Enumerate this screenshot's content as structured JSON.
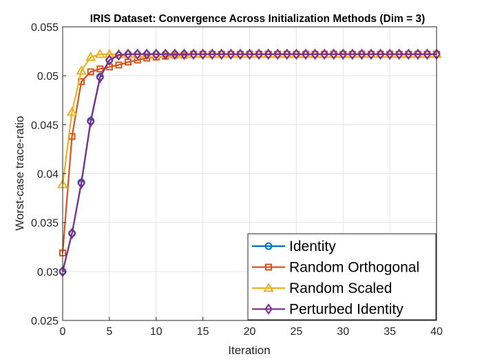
{
  "chart_data": {
    "type": "line",
    "title": "IRIS Dataset: Convergence Across Initialization Methods (Dim = 3)",
    "xlabel": "Iteration",
    "ylabel": "Worst-case trace-ratio",
    "xlim": [
      0,
      40
    ],
    "ylim": [
      0.025,
      0.055
    ],
    "xticks": [
      0,
      5,
      10,
      15,
      20,
      25,
      30,
      35,
      40
    ],
    "xtick_labels": [
      "0",
      "5",
      "10",
      "15",
      "20",
      "25",
      "30",
      "35",
      "40"
    ],
    "yticks": [
      0.025,
      0.03,
      0.035,
      0.04,
      0.045,
      0.05,
      0.055
    ],
    "ytick_labels": [
      "0.025",
      "0.03",
      "0.035",
      "0.04",
      "0.045",
      "0.05",
      "0.055"
    ],
    "grid": true,
    "legend_position": "bottom-right",
    "x": [
      0,
      1,
      2,
      3,
      4,
      5,
      6,
      7,
      8,
      9,
      10,
      11,
      12,
      13,
      14,
      15,
      16,
      17,
      18,
      19,
      20,
      21,
      22,
      23,
      24,
      25,
      26,
      27,
      28,
      29,
      30,
      31,
      32,
      33,
      34,
      35,
      36,
      37,
      38,
      39,
      40
    ],
    "series": [
      {
        "name": "Identity",
        "color": "#0072BD",
        "marker": "circle",
        "values": [
          0.03,
          0.0339,
          0.0391,
          0.0454,
          0.0499,
          0.0516,
          0.0521,
          0.0522,
          0.0522,
          0.0522,
          0.0522,
          0.0522,
          0.0522,
          0.0522,
          0.0522,
          0.0522,
          0.0522,
          0.0522,
          0.0522,
          0.0522,
          0.0522,
          0.0522,
          0.0522,
          0.0522,
          0.0522,
          0.0522,
          0.0522,
          0.0522,
          0.0522,
          0.0522,
          0.0522,
          0.0522,
          0.0522,
          0.0522,
          0.0522,
          0.0522,
          0.0522,
          0.0522,
          0.0522,
          0.0522,
          0.0522
        ]
      },
      {
        "name": "Random Orthogonal",
        "color": "#D95319",
        "marker": "square",
        "values": [
          0.0319,
          0.0438,
          0.0494,
          0.0504,
          0.0507,
          0.0509,
          0.0511,
          0.0514,
          0.0516,
          0.0518,
          0.0519,
          0.052,
          0.0521,
          0.0521,
          0.0522,
          0.0522,
          0.0522,
          0.0522,
          0.0522,
          0.0522,
          0.0522,
          0.0522,
          0.0522,
          0.0522,
          0.0522,
          0.0522,
          0.0522,
          0.0522,
          0.0522,
          0.0522,
          0.0522,
          0.0522,
          0.0522,
          0.0522,
          0.0522,
          0.0522,
          0.0522,
          0.0522,
          0.0522,
          0.0522,
          0.0522
        ]
      },
      {
        "name": "Random Scaled",
        "color": "#EDB120",
        "marker": "triangle",
        "values": [
          0.0389,
          0.0463,
          0.0505,
          0.0519,
          0.0522,
          0.0522,
          0.0522,
          0.0522,
          0.0522,
          0.0522,
          0.0522,
          0.0522,
          0.0522,
          0.0522,
          0.0522,
          0.0522,
          0.0522,
          0.0522,
          0.0522,
          0.0522,
          0.0522,
          0.0522,
          0.0522,
          0.0522,
          0.0522,
          0.0522,
          0.0522,
          0.0522,
          0.0522,
          0.0522,
          0.0522,
          0.0522,
          0.0522,
          0.0522,
          0.0522,
          0.0522,
          0.0522,
          0.0522,
          0.0522,
          0.0522,
          0.0522
        ]
      },
      {
        "name": "Perturbed Identity",
        "color": "#7E2F8E",
        "marker": "diamond",
        "values": [
          0.03,
          0.0339,
          0.039,
          0.0453,
          0.0498,
          0.0516,
          0.0521,
          0.0522,
          0.0522,
          0.0522,
          0.0522,
          0.0522,
          0.0522,
          0.0522,
          0.0522,
          0.0522,
          0.0522,
          0.0522,
          0.0522,
          0.0522,
          0.0522,
          0.0522,
          0.0522,
          0.0522,
          0.0522,
          0.0522,
          0.0522,
          0.0522,
          0.0522,
          0.0522,
          0.0522,
          0.0522,
          0.0522,
          0.0522,
          0.0522,
          0.0522,
          0.0522,
          0.0522,
          0.0522,
          0.0522,
          0.0522
        ]
      }
    ]
  }
}
